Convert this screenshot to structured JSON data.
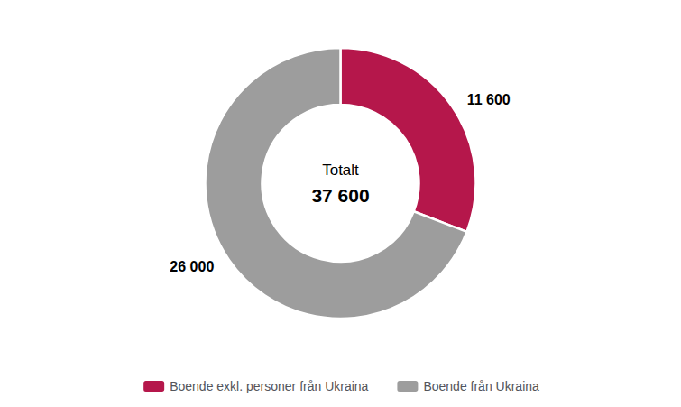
{
  "chart_data": {
    "type": "donut",
    "categories": [
      "Boende exkl. personer från Ukraina",
      "Boende från Ukraina"
    ],
    "values": [
      11600,
      26000
    ],
    "value_labels": [
      "11 600",
      "26 000"
    ],
    "data_labels": true,
    "colors": [
      "#b5174b",
      "#9d9d9d"
    ],
    "annotations": [
      "Totalt",
      "37 600"
    ],
    "legend": "bottom"
  }
}
